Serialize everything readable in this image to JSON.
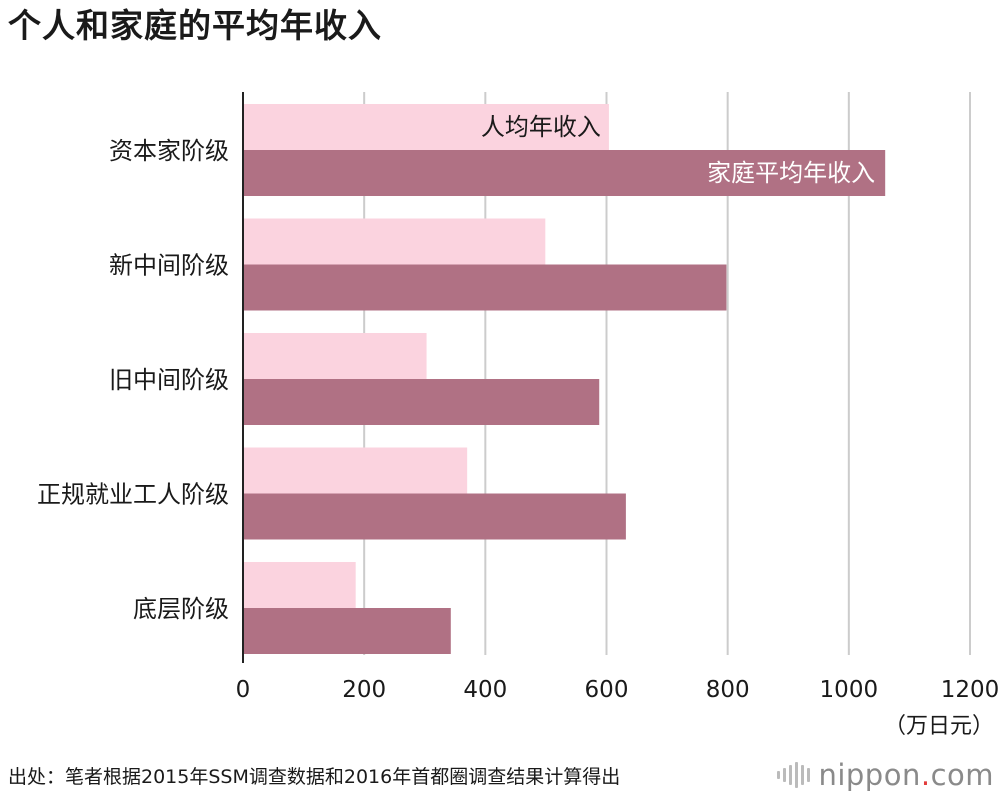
{
  "title": "个人和家庭的平均年收入",
  "chart_data": {
    "type": "bar",
    "orientation": "horizontal",
    "categories": [
      "资本家阶级",
      "新中间阶级",
      "旧中间阶级",
      "正规就业工人阶级",
      "底层阶级"
    ],
    "series": [
      {
        "name": "人均年收入",
        "values": [
          604,
          499,
          303,
          370,
          186
        ]
      },
      {
        "name": "家庭平均年收入",
        "values": [
          1060,
          798,
          588,
          632,
          343
        ]
      }
    ],
    "xlim": [
      0,
      1200
    ],
    "ticks": [
      0,
      200,
      400,
      600,
      800,
      1000,
      1200
    ],
    "tick_labels": [
      "0",
      "200",
      "400",
      "600",
      "800",
      "1000",
      "1200"
    ],
    "unit": "（万日元）",
    "grid": true,
    "colors": {
      "series_1": "#fbd3df",
      "series_2": "#b07184",
      "axis": "#222222",
      "grid": "#cccccc"
    },
    "series_label_placement": "inside first category bars"
  },
  "source": "出处：笔者根据2015年SSM调查数据和2016年首都圈调查结果计算得出",
  "brand": {
    "icon": "nippon-waves-icon",
    "name": "nippon",
    "dot": ".",
    "suffix": "com"
  }
}
